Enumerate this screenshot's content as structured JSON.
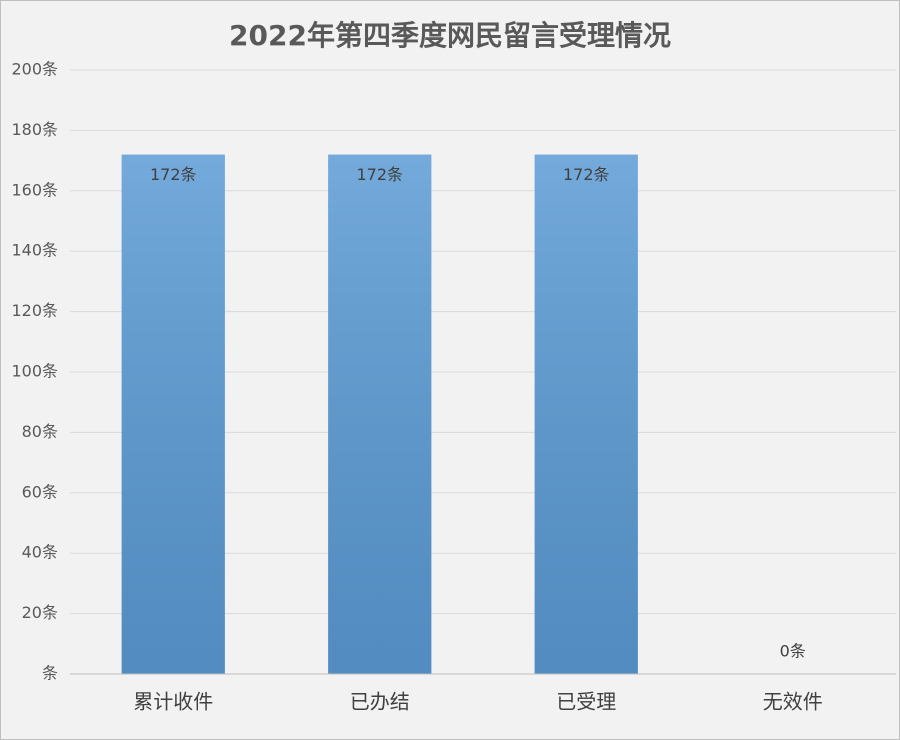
{
  "chart_data": {
    "type": "bar",
    "title": "2022年第四季度网民留言受理情况",
    "categories": [
      "累计收件",
      "已办结",
      "已受理",
      "无效件"
    ],
    "values": [
      172,
      172,
      172,
      0
    ],
    "value_labels": [
      "172条",
      "172条",
      "172条",
      "0条"
    ],
    "color": "#5b9bd5",
    "ylim": [
      0,
      200
    ],
    "yticks": [
      {
        "value": 0,
        "label": "条"
      },
      {
        "value": 20,
        "label": "20条"
      },
      {
        "value": 40,
        "label": "40条"
      },
      {
        "value": 60,
        "label": "60条"
      },
      {
        "value": 80,
        "label": "80条"
      },
      {
        "value": 100,
        "label": "100条"
      },
      {
        "value": 120,
        "label": "120条"
      },
      {
        "value": 140,
        "label": "140条"
      },
      {
        "value": 160,
        "label": "160条"
      },
      {
        "value": 180,
        "label": "180条"
      },
      {
        "value": 200,
        "label": "200条"
      }
    ],
    "grid": true
  }
}
